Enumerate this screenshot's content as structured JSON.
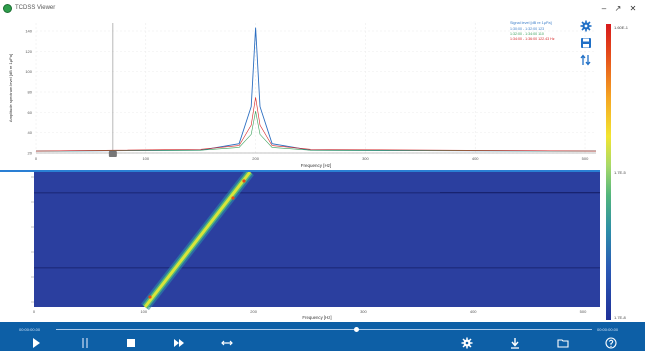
{
  "app": {
    "title": "TCDSS Viewer"
  },
  "window": {
    "minimize": "‒",
    "maximize": "↗",
    "close": "✕"
  },
  "icons": {
    "settings": "gear-icon",
    "save": "floppy-disk-icon",
    "markers": "marker-arrows-icon"
  },
  "spectrum": {
    "xlabel": "Frequency [Hz]",
    "ylabel": "Amplitude spectrum level [dB re 1μPa]",
    "x_ticks": [
      "0",
      "100",
      "200",
      "300",
      "400",
      "500"
    ],
    "y_ticks": [
      "140",
      "120",
      "100",
      "80",
      "60",
      "40",
      "20"
    ],
    "legend": {
      "title": "Signal level [dB re 1μPa]",
      "lines": [
        {
          "text": "1:30:00 - 1:32:00 123",
          "color": "#3a7dc9"
        },
        {
          "text": "1:32:00 - 1:34:00 110",
          "color": "#3aa05a"
        },
        {
          "text": "1:34:00 - 1:36:00 122.43 Hz",
          "color": "#d62728"
        }
      ]
    },
    "colors": {
      "blue": "#2d6fc1",
      "red": "#d62728",
      "green": "#3aa05a",
      "black": "#333333"
    }
  },
  "colorbar": {
    "top_label": "1.60E-1",
    "mid_label": "1.7E-5",
    "bottom_label": "1.7E-8"
  },
  "waterfall": {
    "xlabel": "Frequency [Hz]",
    "x_ticks": [
      "0",
      "100",
      "200",
      "300",
      "400",
      "500"
    ],
    "background": "#2b3f9f"
  },
  "player": {
    "time_start": "00:00:00.00",
    "time_end": "00:00:00.00",
    "progress": 0.56
  },
  "chart_data": {
    "type": "line",
    "title": "",
    "xlabel": "Frequency [Hz]",
    "ylabel": "Amplitude spectrum level [dB re 1μPa]",
    "xlim": [
      0,
      510
    ],
    "ylim": [
      10,
      150
    ],
    "series": [
      {
        "name": "1:30:00 - 1:32:00 123",
        "x": [
          0,
          150,
          185,
          196,
          200,
          204,
          215,
          250,
          510
        ],
        "y": [
          12,
          13,
          20,
          60,
          145,
          60,
          20,
          13,
          12
        ]
      },
      {
        "name": "1:32:00 - 1:34:00 110",
        "x": [
          0,
          150,
          185,
          196,
          200,
          204,
          215,
          250,
          510
        ],
        "y": [
          12,
          13,
          16,
          30,
          55,
          30,
          16,
          13,
          12
        ]
      },
      {
        "name": "1:34:00 - 1:36:00 122.43 Hz",
        "x": [
          0,
          150,
          185,
          196,
          200,
          204,
          215,
          250,
          510
        ],
        "y": [
          12,
          14,
          18,
          40,
          70,
          40,
          18,
          14,
          12
        ]
      }
    ]
  }
}
